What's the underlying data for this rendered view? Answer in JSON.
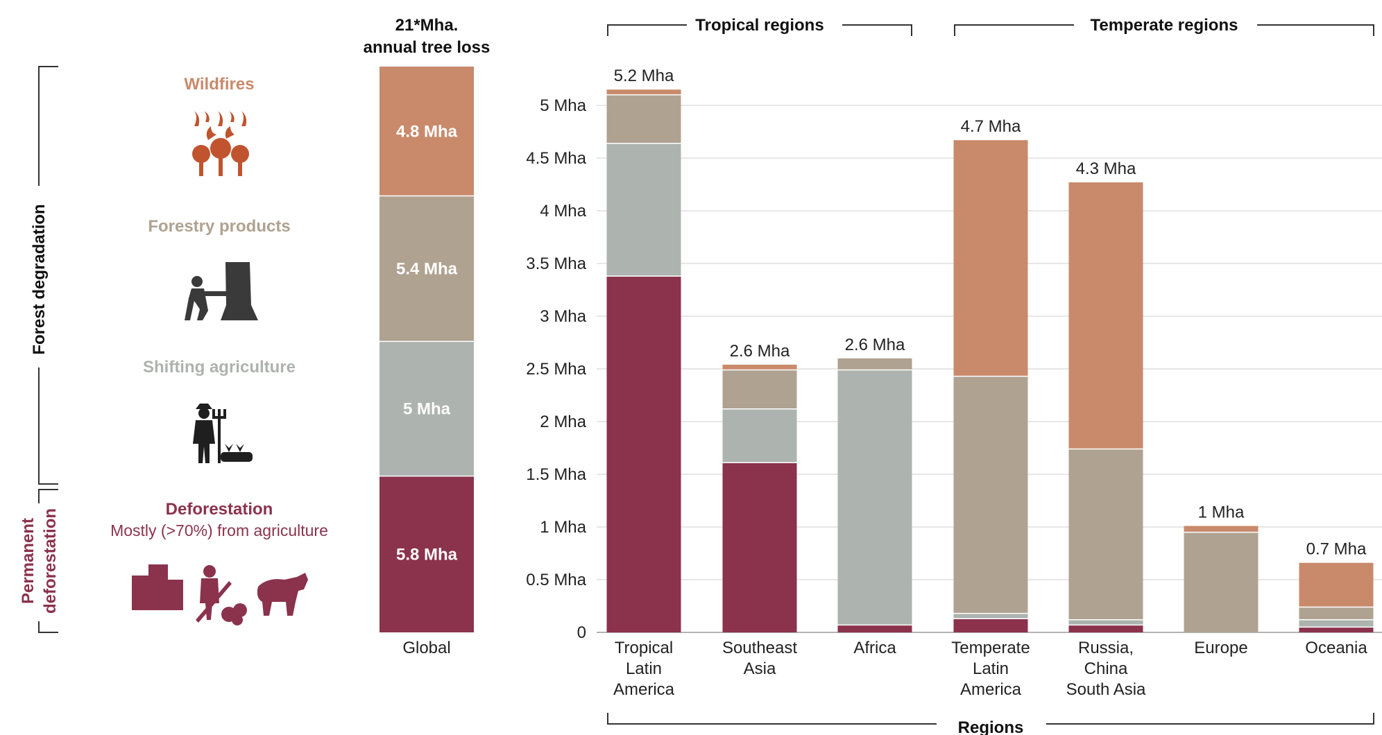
{
  "colors": {
    "wildfires": "#c98a6b",
    "forestry": "#afa291",
    "shifting": "#adb3ae",
    "deforestation": "#8b324d",
    "grid": "#cfcfcf",
    "bracket": "#333333"
  },
  "side_labels": {
    "degradation": "Forest degradation",
    "permanent_line1": "Permanent",
    "permanent_line2": "deforestation"
  },
  "legend": {
    "wildfires": {
      "title": "Wildfires",
      "icon": "wildfire-trees-icon"
    },
    "forestry": {
      "title": "Forestry products",
      "icon": "logger-chainsaw-icon"
    },
    "shifting": {
      "title": "Shifting agriculture",
      "icon": "farmer-pitchfork-icon"
    },
    "deforestation": {
      "title": "Deforestation",
      "subtitle": "Mostly (>70%) from agriculture",
      "icons": [
        "buildings-icon",
        "harvester-icon",
        "cow-icon"
      ]
    }
  },
  "global": {
    "title_line1": "21*Mha.",
    "title_line2": "annual tree loss",
    "category": "Global",
    "segments": [
      {
        "key": "deforestation",
        "value": 5.8,
        "label": "5.8 Mha"
      },
      {
        "key": "shifting",
        "value": 5,
        "label": "5 Mha"
      },
      {
        "key": "forestry",
        "value": 5.4,
        "label": "5.4 Mha"
      },
      {
        "key": "wildfires",
        "value": 4.8,
        "label": "4.8 Mha"
      }
    ]
  },
  "groups": {
    "tropical": "Tropical regions",
    "temperate": "Temperate regions",
    "regions": "Regions"
  },
  "chart_data": {
    "type": "bar",
    "stacked": true,
    "categories": [
      [
        "Tropical",
        "Latin",
        "America"
      ],
      [
        "Southeast",
        "Asia"
      ],
      [
        "Africa"
      ],
      [
        "Temperate",
        "Latin",
        "America"
      ],
      [
        "Russia,",
        "China",
        "South Asia"
      ],
      [
        "Europe"
      ],
      [
        "Oceania"
      ]
    ],
    "series": [
      {
        "key": "deforestation",
        "values": [
          3.38,
          1.61,
          0.07,
          0.13,
          0.07,
          0.0,
          0.05
        ]
      },
      {
        "key": "shifting",
        "values": [
          1.26,
          0.51,
          2.42,
          0.05,
          0.05,
          0.0,
          0.07
        ]
      },
      {
        "key": "forestry",
        "values": [
          0.46,
          0.37,
          0.11,
          2.25,
          1.62,
          0.95,
          0.12
        ]
      },
      {
        "key": "wildfires",
        "values": [
          0.05,
          0.05,
          0.0,
          2.24,
          2.53,
          0.06,
          0.42
        ]
      }
    ],
    "totals": [
      "5.2 Mha",
      "2.6 Mha",
      "2.6 Mha",
      "4.7 Mha",
      "4.3 Mha",
      "1 Mha",
      "0.7 Mha"
    ],
    "ylim": [
      0,
      5.25
    ],
    "yticks": [
      {
        "v": 0,
        "label": "0"
      },
      {
        "v": 0.5,
        "label": "0.5 Mha"
      },
      {
        "v": 1,
        "label": "1 Mha"
      },
      {
        "v": 1.5,
        "label": "1.5 Mha"
      },
      {
        "v": 2,
        "label": "2 Mha"
      },
      {
        "v": 2.5,
        "label": "2.5 Mha"
      },
      {
        "v": 3,
        "label": "3 Mha"
      },
      {
        "v": 3.5,
        "label": "3.5 Mha"
      },
      {
        "v": 4,
        "label": "4 Mha"
      },
      {
        "v": 4.5,
        "label": "4.5 Mha"
      },
      {
        "v": 5,
        "label": "5 Mha"
      }
    ],
    "xlabel": "Regions",
    "grid": true
  }
}
